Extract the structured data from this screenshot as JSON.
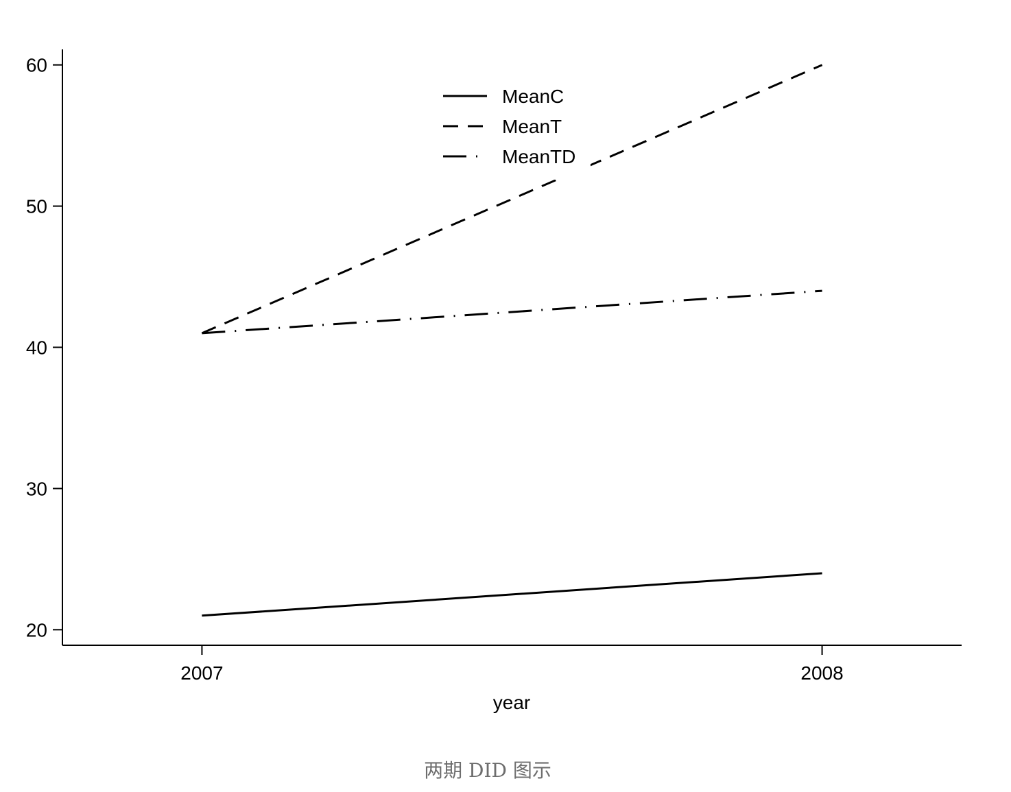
{
  "caption": "两期 DID 图示",
  "chart_data": {
    "type": "line",
    "title": "",
    "xlabel": "year",
    "ylabel": "",
    "x": [
      2007,
      2008
    ],
    "xticks": [
      "2007",
      "2008"
    ],
    "xlim": [
      2006.775,
      2008.225
    ],
    "ylim": [
      18.9,
      61.1
    ],
    "yticks": [
      20,
      30,
      40,
      50,
      60
    ],
    "grid": false,
    "legend_position": "top-center",
    "series": [
      {
        "name": "MeanC",
        "values": [
          21,
          24
        ],
        "style": "solid",
        "color": "#000000"
      },
      {
        "name": "MeanT",
        "values": [
          41,
          60
        ],
        "style": "dash",
        "color": "#000000"
      },
      {
        "name": "MeanTD",
        "values": [
          41,
          44
        ],
        "style": "dash-dot",
        "color": "#000000"
      }
    ]
  }
}
